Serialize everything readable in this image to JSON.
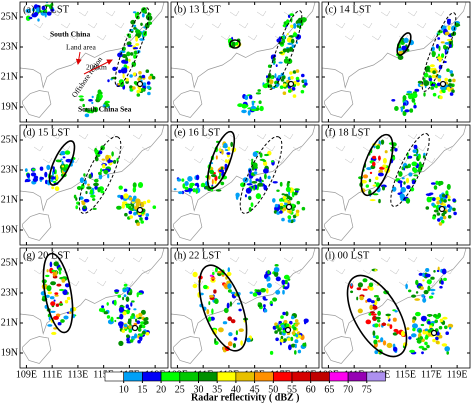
{
  "panels": [
    {
      "label": "(a) 12 LST"
    },
    {
      "label": "(b) 13 LST"
    },
    {
      "label": "(c) 14 LST"
    },
    {
      "label": "(d) 15 LST"
    },
    {
      "label": "(e) 16 LST"
    },
    {
      "label": "(f) 18 LST"
    },
    {
      "label": "(g) 20 LST"
    },
    {
      "label": "(h) 22 LST"
    },
    {
      "label": "(i) 00 LST"
    }
  ],
  "y_axis_labels": [
    "25N",
    "23N",
    "21N",
    "19N"
  ],
  "x_axis_labels": [
    "109E",
    "111E",
    "113E",
    "115E",
    "117E",
    "119E"
  ],
  "annotations": {
    "south_china": "South China",
    "land_area": "Land area",
    "distance": "200km",
    "offshore_region": "Offshore region",
    "south_china_sea": "South China Sea"
  },
  "colorbar": {
    "ticks": [
      10,
      15,
      20,
      25,
      30,
      35,
      40,
      45,
      50,
      55,
      60,
      65,
      70,
      75
    ],
    "label": "Radar reflectivity ( dBZ )"
  }
}
